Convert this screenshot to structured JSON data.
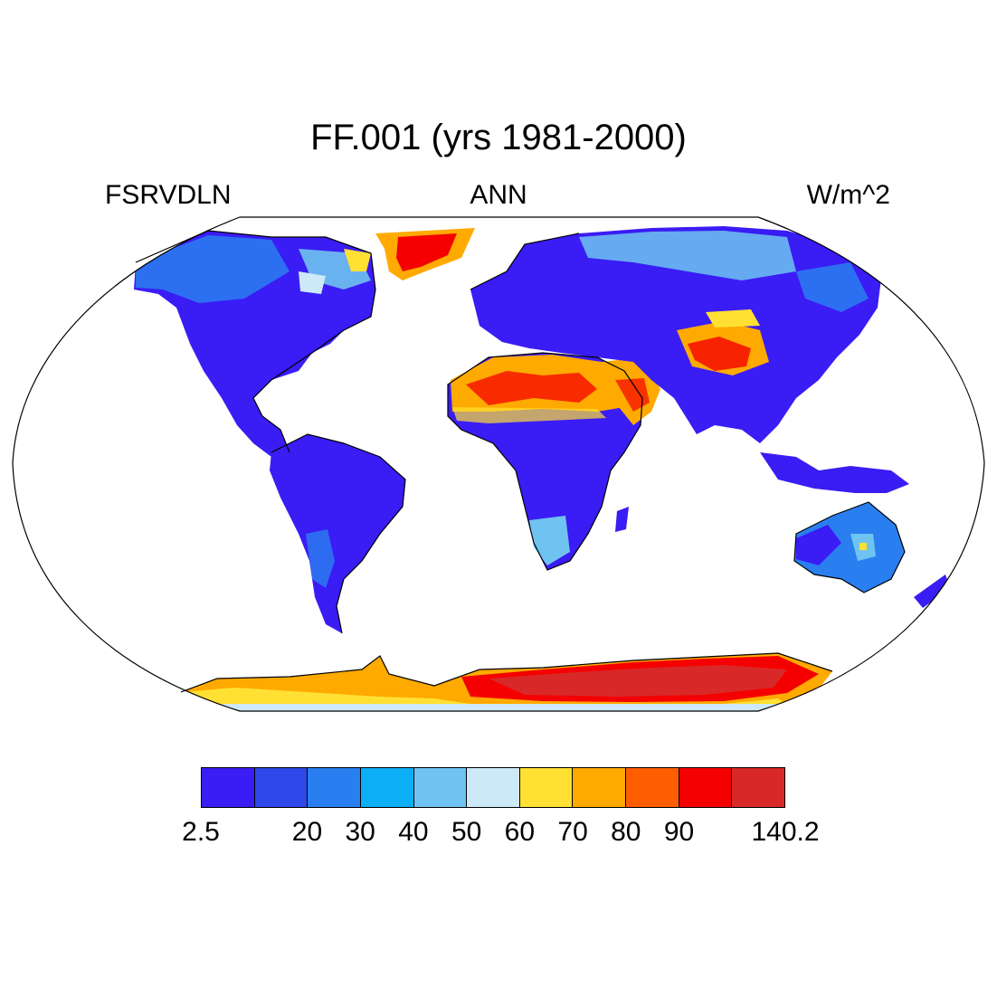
{
  "title": "FF.001 (yrs 1981-2000)",
  "left_label": "FSRVDLN",
  "center_label": "ANN",
  "right_label": "W/m^2",
  "colorbar": {
    "colors": [
      "#3a1cf5",
      "#2e47e8",
      "#2a7ff0",
      "#0caff5",
      "#6fc3f0",
      "#cde9f7",
      "#ffe033",
      "#ffaa00",
      "#ff5e00",
      "#f50000",
      "#d92828"
    ],
    "tick_labels": [
      "2.5",
      "20",
      "30",
      "40",
      "50",
      "60",
      "70",
      "80",
      "90",
      "140.2"
    ]
  },
  "map": {
    "projection": "Robinson",
    "land_color_low": "#3a1cf5",
    "ocean_color": "#ffffff",
    "regions": [
      {
        "name": "sahara",
        "level": "high"
      },
      {
        "name": "greenland",
        "level": "high"
      },
      {
        "name": "antarctica",
        "level": "very-high"
      },
      {
        "name": "tibetan-plateau",
        "level": "high"
      },
      {
        "name": "arabian-peninsula",
        "level": "high"
      }
    ]
  }
}
